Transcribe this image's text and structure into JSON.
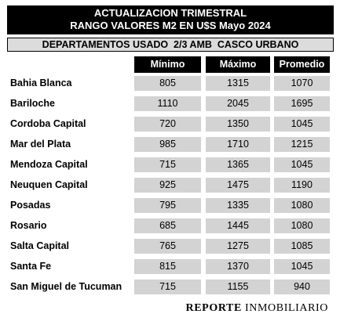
{
  "header": {
    "title_line1": "ACTUALIZACION TRIMESTRAL",
    "title_line2": "RANGO VALORES M2 EN U$S Mayo 2024",
    "subtitle": "DEPARTAMENTOS USADO  2/3 AMB  CASCO URBANO"
  },
  "table": {
    "columns": [
      "Mínimo",
      "Máximo",
      "Promedio"
    ],
    "rows": [
      {
        "city": "Bahia Blanca",
        "min": "805",
        "max": "1315",
        "avg": "1070"
      },
      {
        "city": "Bariloche",
        "min": "1110",
        "max": "2045",
        "avg": "1695"
      },
      {
        "city": "Cordoba Capital",
        "min": "720",
        "max": "1350",
        "avg": "1045"
      },
      {
        "city": "Mar del Plata",
        "min": "985",
        "max": "1710",
        "avg": "1215"
      },
      {
        "city": "Mendoza Capital",
        "min": "715",
        "max": "1365",
        "avg": "1045"
      },
      {
        "city": "Neuquen Capital",
        "min": "925",
        "max": "1475",
        "avg": "1190"
      },
      {
        "city": "Posadas",
        "min": "795",
        "max": "1335",
        "avg": "1080"
      },
      {
        "city": "Rosario",
        "min": "685",
        "max": "1445",
        "avg": "1080"
      },
      {
        "city": "Salta Capital",
        "min": "765",
        "max": "1275",
        "avg": "1085"
      },
      {
        "city": "Santa Fe",
        "min": "815",
        "max": "1370",
        "avg": "1045"
      },
      {
        "city": "San Miguel de Tucuman",
        "min": "715",
        "max": "1155",
        "avg": "940"
      }
    ]
  },
  "footer": {
    "brand_bold": "REPORTE",
    "brand_regular": "INMOBILIARIO"
  }
}
